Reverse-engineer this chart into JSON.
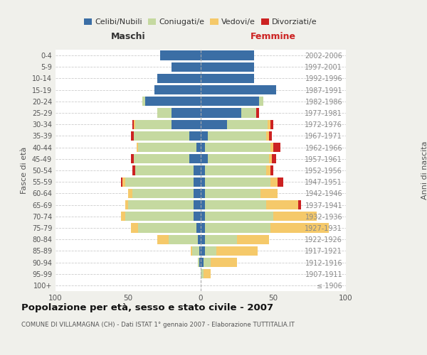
{
  "age_groups": [
    "100+",
    "95-99",
    "90-94",
    "85-89",
    "80-84",
    "75-79",
    "70-74",
    "65-69",
    "60-64",
    "55-59",
    "50-54",
    "45-49",
    "40-44",
    "35-39",
    "30-34",
    "25-29",
    "20-24",
    "15-19",
    "10-14",
    "5-9",
    "0-4"
  ],
  "birth_years": [
    "≤ 1906",
    "1907-1911",
    "1912-1916",
    "1917-1921",
    "1922-1926",
    "1927-1931",
    "1932-1936",
    "1937-1941",
    "1942-1946",
    "1947-1951",
    "1952-1956",
    "1957-1961",
    "1962-1966",
    "1967-1971",
    "1972-1976",
    "1977-1981",
    "1982-1986",
    "1987-1991",
    "1992-1996",
    "1997-2001",
    "2002-2006"
  ],
  "colors": {
    "celibi": "#3b6ea5",
    "coniugati": "#c5d9a0",
    "vedovi": "#f5c96a",
    "divorziati": "#cc2222"
  },
  "males": {
    "celibi": [
      0,
      0,
      1,
      1,
      2,
      3,
      5,
      5,
      5,
      5,
      5,
      8,
      3,
      8,
      20,
      20,
      38,
      32,
      30,
      20,
      28
    ],
    "coniugati": [
      0,
      0,
      1,
      5,
      20,
      40,
      47,
      45,
      42,
      47,
      40,
      38,
      40,
      38,
      25,
      10,
      2,
      0,
      0,
      0,
      0
    ],
    "vedovi": [
      0,
      0,
      0,
      1,
      8,
      5,
      3,
      2,
      3,
      2,
      0,
      0,
      1,
      0,
      1,
      0,
      0,
      0,
      0,
      0,
      0
    ],
    "divorziati": [
      0,
      0,
      0,
      0,
      0,
      0,
      0,
      0,
      0,
      1,
      2,
      2,
      0,
      2,
      1,
      0,
      0,
      0,
      0,
      0,
      0
    ]
  },
  "females": {
    "celibi": [
      0,
      0,
      2,
      3,
      3,
      3,
      3,
      3,
      3,
      3,
      3,
      5,
      3,
      5,
      18,
      28,
      40,
      52,
      37,
      37,
      37
    ],
    "coniugati": [
      0,
      2,
      5,
      8,
      22,
      45,
      47,
      42,
      38,
      45,
      42,
      42,
      45,
      40,
      28,
      10,
      3,
      0,
      0,
      0,
      0
    ],
    "vedovi": [
      0,
      5,
      18,
      28,
      22,
      40,
      30,
      22,
      12,
      5,
      3,
      2,
      2,
      2,
      2,
      0,
      0,
      0,
      0,
      0,
      0
    ],
    "divorziati": [
      0,
      0,
      0,
      0,
      0,
      0,
      0,
      2,
      0,
      4,
      2,
      3,
      5,
      2,
      2,
      2,
      0,
      0,
      0,
      0,
      0
    ]
  },
  "xlim": 100,
  "title": "Popolazione per età, sesso e stato civile - 2007",
  "subtitle": "COMUNE DI VILLAMAGNA (CH) - Dati ISTAT 1° gennaio 2007 - Elaborazione TUTTITALIA.IT",
  "ylabel_left": "Fasce di età",
  "ylabel_right": "Anni di nascita",
  "xlabel_left": "Maschi",
  "xlabel_right": "Femmine",
  "background_color": "#f0f0eb",
  "plot_bg_color": "#ffffff"
}
